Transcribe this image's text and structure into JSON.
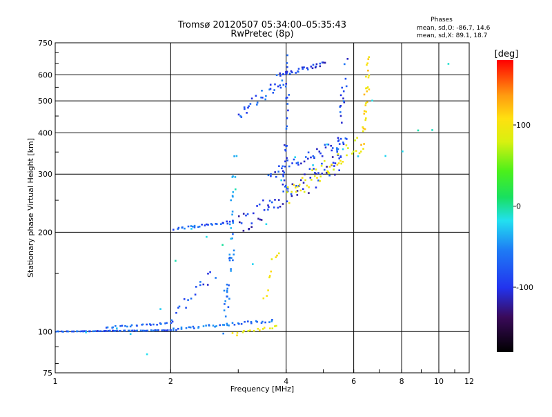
{
  "chart_data": {
    "type": "scatter",
    "title": "Tromsø 20120507 05:34:00–05:35:43",
    "subtitle": "RwPretec (8p)",
    "xlabel": "Frequency [MHz]",
    "ylabel": "Stationary phase Virtual Height [km]",
    "x_scale": "log",
    "y_scale": "log",
    "xlim": [
      1,
      12
    ],
    "ylim": [
      75,
      750
    ],
    "x_ticks": [
      1,
      2,
      4,
      6,
      8,
      10,
      12
    ],
    "x_tick_labels": [
      "1",
      "2",
      "4",
      "6",
      "8",
      "10",
      "12"
    ],
    "y_ticks": [
      75,
      100,
      200,
      300,
      400,
      500,
      600,
      750
    ],
    "y_tick_labels": [
      "75",
      "100",
      "200",
      "300",
      "400",
      "500",
      "600",
      "750"
    ],
    "grid": true,
    "colorbar": {
      "label": "[deg]",
      "range": [
        -180,
        180
      ],
      "ticks": [
        100,
        0,
        -100
      ],
      "tick_labels": [
        "100",
        "0",
        "-100"
      ]
    },
    "stats": {
      "heading": "Phases",
      "line_o": "mean, sd,O: -86.7, 14.6",
      "line_x": "mean, sd,X:  89.1, 18.7"
    },
    "series": [
      {
        "id": "ground-100",
        "phase": -105,
        "x_range": [
          1.0,
          2.05
        ],
        "y": [
          100,
          101
        ],
        "count": 70
      },
      {
        "id": "ground-step",
        "phase": -100,
        "x_range": [
          1.35,
          2.0
        ],
        "y": [
          103,
          106
        ],
        "count": 25
      },
      {
        "id": "e-trace-tail",
        "phase": -90,
        "x_range": [
          2.05,
          3.7
        ],
        "y": [
          102,
          108
        ],
        "count": 40
      },
      {
        "id": "e-cusp-left",
        "phase": -110,
        "x_range": [
          2.0,
          2.6
        ],
        "y": [
          110,
          150
        ],
        "count": 18
      },
      {
        "id": "e-cusp-vertical",
        "phase": -85,
        "x_range": [
          2.75,
          2.92
        ],
        "y": [
          105,
          200
        ],
        "count": 30
      },
      {
        "id": "e-cusp-spike",
        "phase": -60,
        "x_range": [
          2.85,
          2.95
        ],
        "y": [
          200,
          330
        ],
        "count": 14
      },
      {
        "id": "x-e-tail",
        "phase": 90,
        "x_range": [
          2.9,
          3.8
        ],
        "y": [
          98,
          104
        ],
        "count": 16
      },
      {
        "id": "x-e-rise",
        "phase": 100,
        "x_range": [
          3.5,
          3.8
        ],
        "y": [
          130,
          175
        ],
        "count": 10
      },
      {
        "id": "f1-low-plateau",
        "phase": -100,
        "x_range": [
          2.05,
          2.9
        ],
        "y": [
          205,
          215
        ],
        "count": 28
      },
      {
        "id": "f-o-main",
        "phase": -120,
        "x_range": [
          3.0,
          5.6
        ],
        "y": [
          210,
          330
        ],
        "count": 70
      },
      {
        "id": "f-o-upper",
        "phase": -110,
        "x_range": [
          3.6,
          5.8
        ],
        "y": [
          300,
          380
        ],
        "count": 45
      },
      {
        "id": "f-o-cusp",
        "phase": -110,
        "x_range": [
          5.4,
          5.75
        ],
        "y": [
          320,
          650
        ],
        "count": 22
      },
      {
        "id": "f-o-top",
        "phase": -115,
        "x_range": [
          3.8,
          5.1
        ],
        "y": [
          600,
          650
        ],
        "count": 30
      },
      {
        "id": "f-o-high-branch",
        "phase": -105,
        "x_range": [
          3.0,
          4.0
        ],
        "y": [
          460,
          580
        ],
        "count": 30
      },
      {
        "id": "f-o-vertical",
        "phase": -110,
        "x_range": [
          3.95,
          4.05
        ],
        "y": [
          250,
          640
        ],
        "count": 30
      },
      {
        "id": "f-x-trace",
        "phase": 95,
        "x_range": [
          4.0,
          6.2
        ],
        "y": [
          255,
          370
        ],
        "count": 45
      },
      {
        "id": "f-x-cusp",
        "phase": 110,
        "x_range": [
          6.3,
          6.6
        ],
        "y": [
          370,
          660
        ],
        "count": 30
      },
      {
        "id": "scatter-misc",
        "phase": -20,
        "x_range": [
          1.2,
          10.5
        ],
        "y": [
          85,
          620
        ],
        "count": 25
      }
    ]
  }
}
